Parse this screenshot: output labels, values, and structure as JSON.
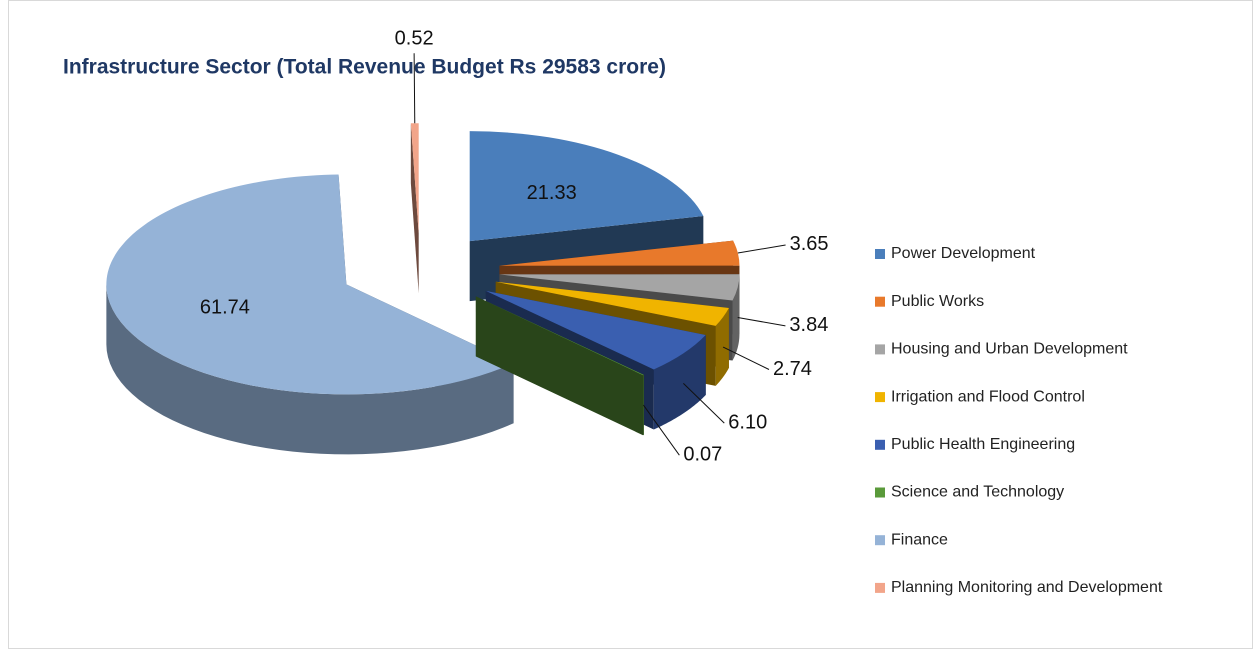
{
  "chart_data": {
    "type": "pie3d",
    "title": "Infrastructure Sector (Total Revenue Budget Rs 29583 crore)",
    "categories": [
      "Power Development",
      "Public Works",
      "Housing and Urban Development",
      "Irrigation and Flood Control",
      "Public Health Engineering",
      "Science and Technology",
      "Finance",
      "Planning Monitoring and Development"
    ],
    "values": [
      21.33,
      3.65,
      3.84,
      2.74,
      6.1,
      0.07,
      61.74,
      0.52
    ],
    "value_labels": [
      "21.33",
      "3.65",
      "3.84",
      "2.74",
      "6.10",
      "0.07",
      "61.74",
      "0.52"
    ],
    "colors": [
      "#4a7ebb",
      "#e8792b",
      "#a5a5a5",
      "#f0b400",
      "#3a5fb0",
      "#5a9a3a",
      "#95b3d7",
      "#f2a58a"
    ],
    "legend": "right"
  }
}
